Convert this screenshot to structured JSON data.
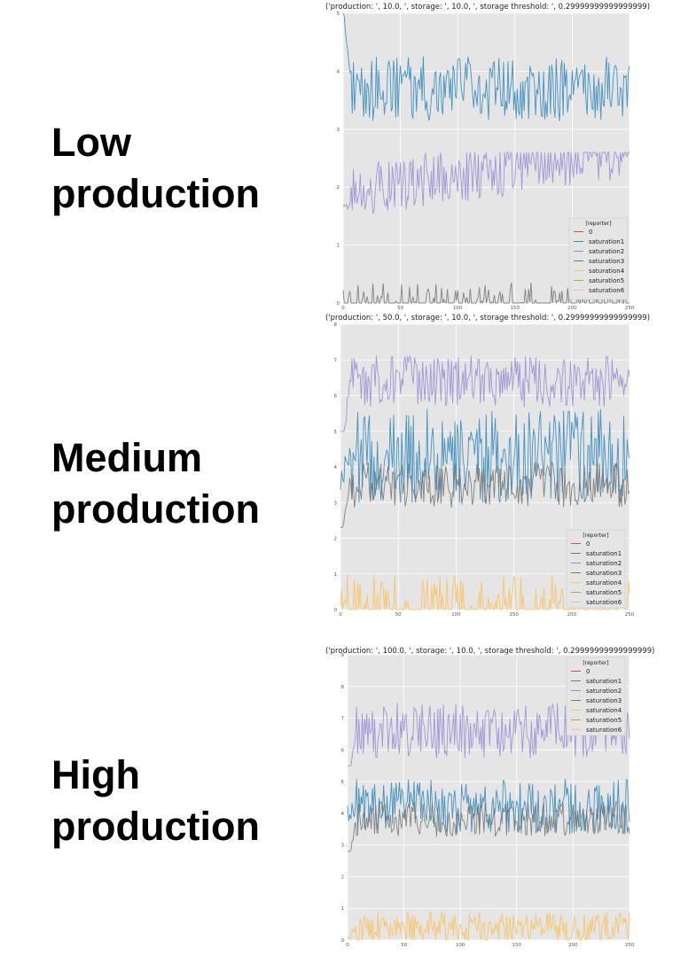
{
  "labels": {
    "low": "Low\nproduction",
    "medium": "Medium\nproduction",
    "high": "High\nproduction"
  },
  "chart_data": [
    {
      "type": "line",
      "title": "('production: ', 10.0, ', storage: ', 10.0, ', storage threshold: ', 0.29999999999999999)",
      "xlim": [
        0,
        250
      ],
      "ylim": [
        0,
        5
      ],
      "xticks": [
        "0",
        "50",
        "100",
        "150",
        "200",
        "250"
      ],
      "yticks": [
        "0",
        "1",
        "2",
        "3",
        "4",
        "5"
      ],
      "grid": true,
      "legend_position": "bottom-right",
      "legend_title": "[reporter]",
      "legend": [
        "0",
        "saturation1",
        "saturation2",
        "saturation3",
        "saturation4",
        "saturation5",
        "saturation6"
      ],
      "colors": [
        "#e24a33",
        "#348abd",
        "#988ed5",
        "#777777",
        "#fbc15e",
        "#8eba42",
        "#ffb5b8"
      ],
      "series": [
        {
          "name": "saturation1",
          "style": "noise",
          "params": [
            3.7,
            0.35,
            2.9,
            5.0,
            5.0,
            0.0
          ]
        },
        {
          "name": "saturation2",
          "style": "noise",
          "params": [
            1.9,
            0.3,
            1.0,
            2.6,
            1.6,
            0.003
          ]
        },
        {
          "name": "saturation3",
          "style": "spiky",
          "params": [
            0.0,
            0.3,
            0.0,
            0.35,
            0.0,
            0.0
          ]
        }
      ]
    },
    {
      "type": "line",
      "title": "('production: ', 50.0, ', storage: ', 10.0, ', storage threshold: ', 0.29999999999999999)",
      "xlim": [
        0,
        250
      ],
      "ylim": [
        0,
        8
      ],
      "xticks": [
        "0",
        "50",
        "100",
        "150",
        "200",
        "250"
      ],
      "yticks": [
        "0",
        "1",
        "2",
        "3",
        "4",
        "5",
        "6",
        "7",
        "8"
      ],
      "grid": true,
      "legend_position": "bottom-right",
      "legend_title": "[reporter]",
      "legend": [
        "0",
        "saturation1",
        "saturation2",
        "saturation3",
        "saturation4",
        "saturation5",
        "saturation6"
      ],
      "colors": [
        "#e24a33",
        "#348abd",
        "#988ed5",
        "#777777",
        "#fbc15e",
        "#8eba42",
        "#ffb5b8"
      ],
      "series": [
        {
          "name": "saturation2",
          "style": "noise",
          "params": [
            6.4,
            0.45,
            5.0,
            7.9,
            4.0,
            0.0
          ]
        },
        {
          "name": "saturation1",
          "style": "noise",
          "params": [
            4.3,
            0.85,
            3.0,
            6.0,
            3.5,
            0.0
          ]
        },
        {
          "name": "saturation3",
          "style": "noise",
          "params": [
            3.5,
            0.4,
            2.3,
            4.6,
            2.0,
            0.0
          ]
        },
        {
          "name": "saturation4",
          "style": "spiky",
          "params": [
            0.3,
            0.3,
            0.0,
            1.0,
            0.0,
            0.0
          ]
        }
      ]
    },
    {
      "type": "line",
      "title": "('production: ', 100.0, ', storage: ', 10.0, ', storage threshold: ', 0.29999999999999999)",
      "xlim": [
        0,
        250
      ],
      "ylim": [
        0,
        9
      ],
      "xticks": [
        "0",
        "50",
        "100",
        "150",
        "200",
        "250"
      ],
      "yticks": [
        "0",
        "1",
        "2",
        "3",
        "4",
        "5",
        "6",
        "7",
        "8",
        "9"
      ],
      "grid": true,
      "legend_position": "top-right",
      "legend_title": "[reporter]",
      "legend": [
        "0",
        "saturation1",
        "saturation2",
        "saturation3",
        "saturation4",
        "saturation5",
        "saturation6"
      ],
      "colors": [
        "#e24a33",
        "#348abd",
        "#988ed5",
        "#777777",
        "#fbc15e",
        "#8eba42",
        "#ffb5b8"
      ],
      "series": [
        {
          "name": "saturation2",
          "style": "noise",
          "params": [
            6.6,
            0.55,
            5.5,
            8.2,
            5.0,
            0.0
          ]
        },
        {
          "name": "saturation1",
          "style": "noise",
          "params": [
            4.2,
            0.55,
            3.0,
            5.6,
            4.0,
            0.0
          ]
        },
        {
          "name": "saturation3",
          "style": "noise",
          "params": [
            3.8,
            0.35,
            2.8,
            4.8,
            2.5,
            0.0
          ]
        },
        {
          "name": "saturation4",
          "style": "noise",
          "params": [
            0.4,
            0.3,
            0.0,
            1.4,
            0.0,
            0.0
          ]
        }
      ]
    }
  ]
}
